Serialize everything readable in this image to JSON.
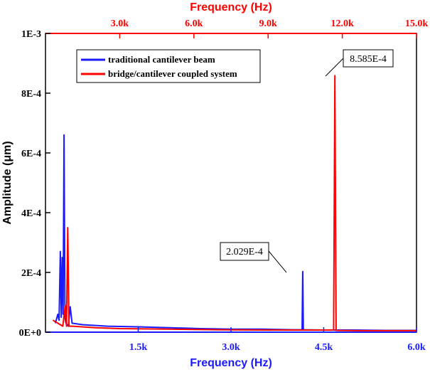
{
  "chart_data": {
    "type": "line",
    "ylabel": "Amplitude (μm)",
    "xlabel_bottom": "Frequency (Hz)",
    "xlabel_top": "Frequency (Hz)",
    "bottom_axis": {
      "range": [
        0,
        6000
      ],
      "ticks": [
        1500,
        3000,
        4500,
        6000
      ],
      "tick_labels": [
        "1.5k",
        "3.0k",
        "4.5k",
        "6.0k"
      ],
      "color": "#1a1aff"
    },
    "top_axis": {
      "range": [
        0,
        15000
      ],
      "ticks": [
        3000,
        6000,
        9000,
        12000,
        15000
      ],
      "tick_labels": [
        "3.0k",
        "6.0k",
        "9.0k",
        "12.0k",
        "15.0k"
      ],
      "color": "#ff0000"
    },
    "y_axis": {
      "range": [
        0,
        0.001
      ],
      "ticks": [
        0,
        0.0002,
        0.0004,
        0.0006,
        0.0008,
        0.001
      ],
      "tick_labels": [
        "0E+0",
        "2E-4",
        "4E-4",
        "6E-4",
        "8E-4",
        "1E-3"
      ]
    },
    "series": [
      {
        "name": "traditional cantilever beam",
        "color": "#1a1aff",
        "axis": "bottom",
        "points": [
          [
            160,
            3e-05
          ],
          [
            200,
            6e-05
          ],
          [
            220,
            4e-05
          ],
          [
            240,
            0.00027
          ],
          [
            255,
            5e-05
          ],
          [
            270,
            0.00025
          ],
          [
            285,
            6e-05
          ],
          [
            300,
            0.00066
          ],
          [
            315,
            5e-05
          ],
          [
            330,
            3e-05
          ],
          [
            370,
            2e-05
          ],
          [
            400,
            8.5e-05
          ],
          [
            430,
            3e-05
          ],
          [
            600,
            2.5e-05
          ],
          [
            1000,
            2e-05
          ],
          [
            1500,
            1.8e-05
          ],
          [
            2000,
            1.5e-05
          ],
          [
            2500,
            1.2e-05
          ],
          [
            3000,
            1e-05
          ],
          [
            3500,
            1e-05
          ],
          [
            4000,
            8e-06
          ],
          [
            4150,
            8e-06
          ],
          [
            4160,
            0.0002029
          ],
          [
            4170,
            8e-06
          ],
          [
            4500,
            7e-06
          ],
          [
            5000,
            7e-06
          ],
          [
            5500,
            6e-06
          ],
          [
            6000,
            6e-06
          ]
        ]
      },
      {
        "name": "bridge/cantilever coupled system",
        "color": "#ff0000",
        "axis": "top",
        "points": [
          [
            300,
            4e-05
          ],
          [
            500,
            3e-05
          ],
          [
            700,
            2e-05
          ],
          [
            800,
            9e-05
          ],
          [
            850,
            2e-05
          ],
          [
            900,
            0.00035
          ],
          [
            950,
            2e-05
          ],
          [
            1100,
            2e-05
          ],
          [
            2000,
            1.5e-05
          ],
          [
            3000,
            1.2e-05
          ],
          [
            5000,
            1e-05
          ],
          [
            7000,
            8e-06
          ],
          [
            10000,
            7e-06
          ],
          [
            11650,
            7e-06
          ],
          [
            11700,
            0.0008585
          ],
          [
            11750,
            6e-06
          ],
          [
            13000,
            5e-06
          ],
          [
            15000,
            5e-06
          ]
        ]
      }
    ],
    "annotations": [
      {
        "text": "2.029E-4",
        "series": 0,
        "x": 4160,
        "y": 0.0002029
      },
      {
        "text": "8.585E-4",
        "series": 1,
        "x": 11700,
        "y": 0.0008585
      }
    ],
    "legend": "top-left",
    "grid": false
  }
}
